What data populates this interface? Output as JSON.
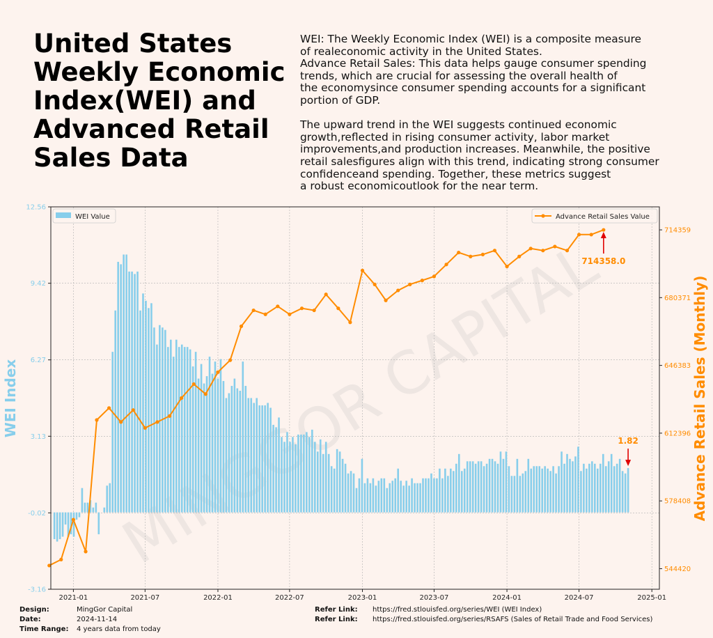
{
  "title_lines": [
    "United States",
    "Weekly Economic",
    "Index(WEI) and",
    "Advanced Retail",
    "Sales Data"
  ],
  "description_lines": [
    "WEI: The Weekly Economic Index (WEI) is a composite measure",
    "of realeconomic activity in the United States.",
    "Advance Retail Sales: This data helps gauge consumer spending",
    "trends, which are crucial for assessing the overall health of",
    "the economysince consumer spending accounts for a significant",
    "portion of GDP.",
    "",
    "The upward trend in the WEI suggests continued economic",
    "growth,reflected in rising consumer activity, labor market",
    "improvements,and production increases. Meanwhile, the positive",
    "retail salesfigures align with this trend, indicating strong consumer",
    "confidenceand spending. Together, these metrics suggest",
    "a robust economicoutlook for the near term."
  ],
  "footer": {
    "design_label": "Design:",
    "design_value": "MingGor Capital",
    "date_label": "Date:",
    "date_value": "2024-11-14",
    "range_label": "Time Range:",
    "range_value": "4 years data from today",
    "ref1_label": "Refer Link:",
    "ref1_value": "https://fred.stlouisfed.org/series/WEI (WEI Index)",
    "ref2_label": "Refer Link:",
    "ref2_value": "https://fred.stlouisfed.org/series/RSAFS (Sales of Retail Trade and Food Services)"
  },
  "colors": {
    "background": "#fdf3ee",
    "wei_bar": "#87ceeb",
    "retail_line": "#ff8c00",
    "annotation_arrow": "#e00000",
    "watermark": "#bbbbbb"
  },
  "chart_data": {
    "type": "bar+line",
    "watermark": "MINGGOR CAPITAL",
    "xticks": [
      "2021-01",
      "2021-07",
      "2022-01",
      "2022-07",
      "2023-01",
      "2023-07",
      "2024-01",
      "2024-07",
      "2025-01"
    ],
    "xlim": [
      "2020-11-05",
      "2025-01-20"
    ],
    "left_axis": {
      "label": "WEI Index",
      "ticks": [
        "12.56",
        "9.42",
        "6.27",
        "3.13",
        "-0.02",
        "-3.16"
      ],
      "ylim": [
        -3.16,
        12.56
      ],
      "grid": true
    },
    "right_axis": {
      "label": "Advance Retail Sales (Monthly)",
      "ticks": [
        "714359",
        "680371",
        "646383",
        "612396",
        "578408",
        "544420"
      ],
      "ylim": [
        534100,
        725900
      ]
    },
    "legend_left": "WEI Value",
    "legend_right": "Advance Retail Sales Value",
    "wei_series": {
      "name": "WEI Value",
      "start": "2020-11-14",
      "interval_days": 7,
      "values": [
        -1.1,
        -1.2,
        -1.1,
        -1.0,
        -0.5,
        -1.0,
        -0.9,
        -1.0,
        -0.3,
        -0.2,
        1.0,
        0.4,
        0.4,
        0.5,
        0.2,
        0.4,
        -0.9,
        0.0,
        0.2,
        1.1,
        1.2,
        6.6,
        8.3,
        10.3,
        10.2,
        10.6,
        10.6,
        9.9,
        9.9,
        9.8,
        9.9,
        8.3,
        9.0,
        8.7,
        8.4,
        8.6,
        7.6,
        6.9,
        7.7,
        7.6,
        7.5,
        6.8,
        7.1,
        6.4,
        7.1,
        6.8,
        6.9,
        6.8,
        6.8,
        6.7,
        6.0,
        6.6,
        5.5,
        6.1,
        5.3,
        5.6,
        6.4,
        5.7,
        6.2,
        5.5,
        6.3,
        5.4,
        4.7,
        4.9,
        5.2,
        5.5,
        5.1,
        5.0,
        6.2,
        5.2,
        4.7,
        4.7,
        4.5,
        4.7,
        4.4,
        4.4,
        4.4,
        4.5,
        4.3,
        3.6,
        3.5,
        3.9,
        3.1,
        2.9,
        3.3,
        2.9,
        3.1,
        2.8,
        3.2,
        3.2,
        3.2,
        3.3,
        3.1,
        3.4,
        2.9,
        2.5,
        3.0,
        2.4,
        2.9,
        2.4,
        1.9,
        1.8,
        2.6,
        2.5,
        2.2,
        2.0,
        1.6,
        1.7,
        1.6,
        1.0,
        1.4,
        2.2,
        1.2,
        1.4,
        1.2,
        1.4,
        1.1,
        1.3,
        1.4,
        1.4,
        1.0,
        1.2,
        1.3,
        1.4,
        1.8,
        1.3,
        1.1,
        1.3,
        1.1,
        1.4,
        1.2,
        1.2,
        1.2,
        1.4,
        1.4,
        1.4,
        1.6,
        1.4,
        1.4,
        1.8,
        1.4,
        1.8,
        1.5,
        1.8,
        1.7,
        2.0,
        2.4,
        1.7,
        1.8,
        2.1,
        2.1,
        2.1,
        2.0,
        2.1,
        2.1,
        1.9,
        2.0,
        2.2,
        2.2,
        2.1,
        2.0,
        2.5,
        2.2,
        2.5,
        1.9,
        1.5,
        1.5,
        2.2,
        1.5,
        1.6,
        1.7,
        2.2,
        1.8,
        1.9,
        1.9,
        1.9,
        1.8,
        1.9,
        1.8,
        1.7,
        1.9,
        1.6,
        1.9,
        2.5,
        2.0,
        2.4,
        2.2,
        2.1,
        2.3,
        2.7,
        1.7,
        2.0,
        1.8,
        2.0,
        2.1,
        2.0,
        1.8,
        2.0,
        2.4,
        1.9,
        2.1,
        2.4,
        1.9,
        2.0,
        2.2,
        1.7,
        1.6,
        1.82
      ]
    },
    "retail_series": {
      "name": "Advance Retail Sales Value",
      "dates": [
        "2020-11-01",
        "2020-12-01",
        "2021-01-01",
        "2021-02-01",
        "2021-03-01",
        "2021-04-01",
        "2021-05-01",
        "2021-06-01",
        "2021-07-01",
        "2021-08-01",
        "2021-09-01",
        "2021-10-01",
        "2021-11-01",
        "2021-12-01",
        "2022-01-01",
        "2022-02-01",
        "2022-03-01",
        "2022-04-01",
        "2022-05-01",
        "2022-06-01",
        "2022-07-01",
        "2022-08-01",
        "2022-09-01",
        "2022-10-01",
        "2022-11-01",
        "2022-12-01",
        "2023-01-01",
        "2023-02-01",
        "2023-03-01",
        "2023-04-01",
        "2023-05-01",
        "2023-06-01",
        "2023-07-01",
        "2023-08-01",
        "2023-09-01",
        "2023-10-01",
        "2023-11-01",
        "2023-12-01",
        "2024-01-01",
        "2024-02-01",
        "2024-03-01",
        "2024-04-01",
        "2024-05-01",
        "2024-06-01",
        "2024-07-01",
        "2024-08-01",
        "2024-09-01"
      ],
      "values": [
        546000,
        549000,
        569000,
        553000,
        619000,
        625000,
        618000,
        624000,
        615000,
        618000,
        621000,
        630000,
        637000,
        632000,
        643000,
        649000,
        666000,
        674000,
        672000,
        676000,
        672000,
        675000,
        674000,
        682000,
        675000,
        668000,
        694000,
        687000,
        679000,
        684000,
        687000,
        689000,
        691000,
        697000,
        703000,
        701000,
        702000,
        704000,
        696000,
        701000,
        705000,
        704000,
        706000,
        704000,
        712000,
        712000,
        714358
      ]
    },
    "annotations": [
      {
        "series": "retail",
        "date": "2024-09-01",
        "value": 714358,
        "label": "714358.0"
      },
      {
        "series": "wei",
        "date": "2024-11-09",
        "value": 1.82,
        "label": "1.82"
      }
    ]
  }
}
